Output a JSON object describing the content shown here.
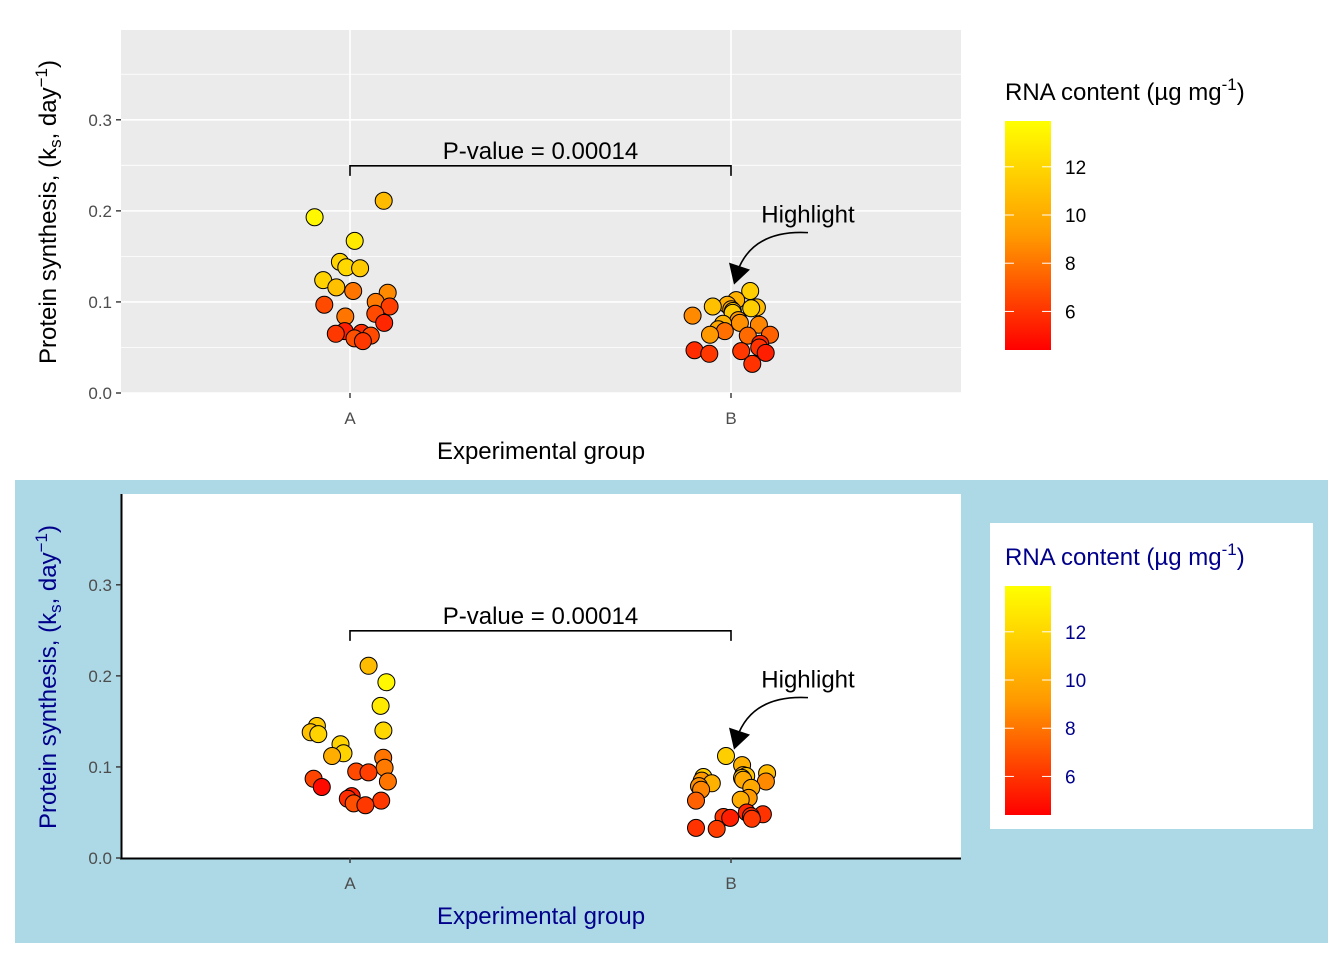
{
  "chart_data": [
    {
      "type": "scatter",
      "panel": "top",
      "theme": "grey",
      "title": "",
      "xlabel": "Experimental group",
      "ylabel": "Protein synthesis, (k_s, day^-1)",
      "ylabel_parts": {
        "main": "Protein synthesis, (k",
        "sub": "s",
        "mid": ", day",
        "sup": "−1",
        "end": ")"
      },
      "categories": [
        "A",
        "B"
      ],
      "ylim": [
        0,
        0.4
      ],
      "yticks": [
        0.0,
        0.1,
        0.2,
        0.3
      ],
      "ytick_labels": [
        "0.0",
        "0.1",
        "0.2",
        "0.3"
      ],
      "grid": true,
      "annotations": {
        "bracket": {
          "from": "A",
          "to": "B",
          "y": 0.25,
          "label": "P-value = 0.00014"
        },
        "highlight": {
          "label": "Highlight",
          "target_group": "B",
          "target_y": 0.13
        }
      },
      "color_legend": {
        "title_main": "RNA content (µg mg",
        "title_sup": "-1",
        "title_end": ")",
        "range": [
          4.4,
          13.9
        ],
        "ticks": [
          6,
          8,
          10,
          12
        ],
        "tick_labels": [
          "6",
          "8",
          "10",
          "12"
        ],
        "low_color": "#ff0000",
        "high_color": "#ffff00",
        "placement": "right"
      },
      "series": [
        {
          "name": "A",
          "points": [
            {
              "y": 0.211,
              "rna": 11.0
            },
            {
              "y": 0.193,
              "rna": 13.6
            },
            {
              "y": 0.167,
              "rna": 13.0
            },
            {
              "y": 0.144,
              "rna": 12.0
            },
            {
              "y": 0.138,
              "rna": 12.2
            },
            {
              "y": 0.137,
              "rna": 11.6
            },
            {
              "y": 0.124,
              "rna": 12.0
            },
            {
              "y": 0.116,
              "rna": 11.2
            },
            {
              "y": 0.112,
              "rna": 8.2
            },
            {
              "y": 0.11,
              "rna": 9.0
            },
            {
              "y": 0.1,
              "rna": 8.4
            },
            {
              "y": 0.097,
              "rna": 6.6
            },
            {
              "y": 0.095,
              "rna": 6.2
            },
            {
              "y": 0.087,
              "rna": 6.6
            },
            {
              "y": 0.084,
              "rna": 8.2
            },
            {
              "y": 0.077,
              "rna": 5.4
            },
            {
              "y": 0.068,
              "rna": 5.2
            },
            {
              "y": 0.066,
              "rna": 5.6
            },
            {
              "y": 0.065,
              "rna": 6.0
            },
            {
              "y": 0.063,
              "rna": 6.6
            },
            {
              "y": 0.06,
              "rna": 6.8
            },
            {
              "y": 0.057,
              "rna": 6.0
            }
          ]
        },
        {
          "name": "B",
          "points": [
            {
              "y": 0.112,
              "rna": 11.8
            },
            {
              "y": 0.102,
              "rna": 10.6
            },
            {
              "y": 0.097,
              "rna": 10.4
            },
            {
              "y": 0.095,
              "rna": 11.2
            },
            {
              "y": 0.094,
              "rna": 11.0
            },
            {
              "y": 0.093,
              "rna": 11.8
            },
            {
              "y": 0.092,
              "rna": 10.2
            },
            {
              "y": 0.09,
              "rna": 11.4
            },
            {
              "y": 0.088,
              "rna": 11.6
            },
            {
              "y": 0.085,
              "rna": 9.0
            },
            {
              "y": 0.08,
              "rna": 9.6
            },
            {
              "y": 0.077,
              "rna": 9.2
            },
            {
              "y": 0.076,
              "rna": 10.6
            },
            {
              "y": 0.075,
              "rna": 8.8
            },
            {
              "y": 0.07,
              "rna": 10.2
            },
            {
              "y": 0.068,
              "rna": 8.0
            },
            {
              "y": 0.064,
              "rna": 9.6
            },
            {
              "y": 0.064,
              "rna": 7.4
            },
            {
              "y": 0.063,
              "rna": 7.8
            },
            {
              "y": 0.054,
              "rna": 5.4
            },
            {
              "y": 0.05,
              "rna": 5.8
            },
            {
              "y": 0.047,
              "rna": 5.6
            },
            {
              "y": 0.046,
              "rna": 6.0
            },
            {
              "y": 0.044,
              "rna": 5.2
            },
            {
              "y": 0.043,
              "rna": 6.0
            },
            {
              "y": 0.032,
              "rna": 5.8
            }
          ]
        }
      ]
    },
    {
      "type": "scatter",
      "panel": "bottom",
      "theme": "classic-with-lightblue-background",
      "plot_background": "#add8e6",
      "text_color": "#00008b",
      "title": "",
      "xlabel": "Experimental group",
      "ylabel": "Protein synthesis, (k_s, day^-1)",
      "ylabel_parts": {
        "main": "Protein synthesis, (k",
        "sub": "s",
        "mid": ", day",
        "sup": "−1",
        "end": ")"
      },
      "categories": [
        "A",
        "B"
      ],
      "ylim": [
        0,
        0.4
      ],
      "yticks": [
        0.0,
        0.1,
        0.2,
        0.3
      ],
      "ytick_labels": [
        "0.0",
        "0.1",
        "0.2",
        "0.3"
      ],
      "grid": false,
      "annotations": {
        "bracket": {
          "from": "A",
          "to": "B",
          "y": 0.25,
          "label": "P-value = 0.00014"
        },
        "highlight": {
          "label": "Highlight",
          "target_group": "B",
          "target_y": 0.13
        }
      },
      "color_legend": {
        "title_main": "RNA content (µg mg",
        "title_sup": "-1",
        "title_end": ")",
        "range": [
          4.4,
          13.9
        ],
        "ticks": [
          6,
          8,
          10,
          12
        ],
        "tick_labels": [
          "6",
          "8",
          "10",
          "12"
        ],
        "low_color": "#ff0000",
        "high_color": "#ffff00",
        "placement": "right"
      },
      "series": [
        {
          "name": "A",
          "points": [
            {
              "y": 0.211,
              "rna": 11.0
            },
            {
              "y": 0.193,
              "rna": 13.6
            },
            {
              "y": 0.167,
              "rna": 13.0
            },
            {
              "y": 0.145,
              "rna": 11.6
            },
            {
              "y": 0.14,
              "rna": 12.2
            },
            {
              "y": 0.138,
              "rna": 11.2
            },
            {
              "y": 0.136,
              "rna": 12.0
            },
            {
              "y": 0.125,
              "rna": 12.0
            },
            {
              "y": 0.115,
              "rna": 12.0
            },
            {
              "y": 0.112,
              "rna": 10.4
            },
            {
              "y": 0.11,
              "rna": 8.2
            },
            {
              "y": 0.099,
              "rna": 8.4
            },
            {
              "y": 0.095,
              "rna": 6.6
            },
            {
              "y": 0.094,
              "rna": 6.2
            },
            {
              "y": 0.087,
              "rna": 6.4
            },
            {
              "y": 0.084,
              "rna": 8.2
            },
            {
              "y": 0.078,
              "rna": 4.6
            },
            {
              "y": 0.068,
              "rna": 5.2
            },
            {
              "y": 0.065,
              "rna": 5.6
            },
            {
              "y": 0.063,
              "rna": 6.0
            },
            {
              "y": 0.06,
              "rna": 6.8
            },
            {
              "y": 0.058,
              "rna": 6.0
            }
          ]
        },
        {
          "name": "B",
          "points": [
            {
              "y": 0.112,
              "rna": 11.8
            },
            {
              "y": 0.102,
              "rna": 10.6
            },
            {
              "y": 0.093,
              "rna": 11.0
            },
            {
              "y": 0.091,
              "rna": 10.4
            },
            {
              "y": 0.09,
              "rna": 11.4
            },
            {
              "y": 0.089,
              "rna": 11.8
            },
            {
              "y": 0.088,
              "rna": 11.2
            },
            {
              "y": 0.086,
              "rna": 10.2
            },
            {
              "y": 0.085,
              "rna": 9.6
            },
            {
              "y": 0.084,
              "rna": 9.0
            },
            {
              "y": 0.082,
              "rna": 10.6
            },
            {
              "y": 0.079,
              "rna": 9.2
            },
            {
              "y": 0.077,
              "rna": 10.2
            },
            {
              "y": 0.075,
              "rna": 8.8
            },
            {
              "y": 0.066,
              "rna": 9.6
            },
            {
              "y": 0.064,
              "rna": 10.4
            },
            {
              "y": 0.063,
              "rna": 7.4
            },
            {
              "y": 0.05,
              "rna": 5.4
            },
            {
              "y": 0.048,
              "rna": 5.8
            },
            {
              "y": 0.046,
              "rna": 5.6
            },
            {
              "y": 0.045,
              "rna": 6.0
            },
            {
              "y": 0.044,
              "rna": 5.2
            },
            {
              "y": 0.043,
              "rna": 6.0
            },
            {
              "y": 0.033,
              "rna": 5.8
            },
            {
              "y": 0.032,
              "rna": 6.2
            }
          ]
        }
      ]
    }
  ]
}
